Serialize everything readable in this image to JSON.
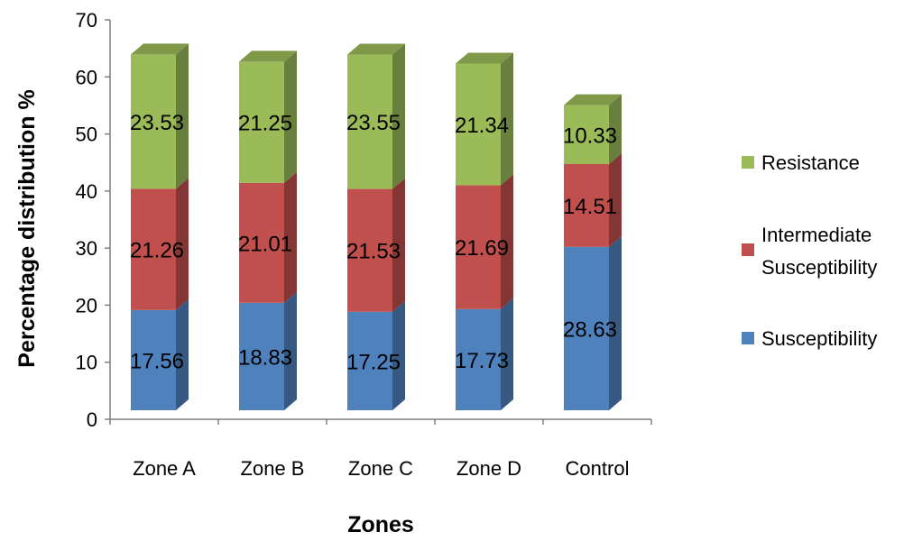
{
  "chart_data": {
    "type": "bar",
    "stacked": true,
    "three_d": true,
    "title": "",
    "xlabel": "Zones",
    "ylabel": "Percentage distribution %",
    "ylim": [
      0,
      70
    ],
    "yticks": [
      0,
      10,
      20,
      30,
      40,
      50,
      60,
      70
    ],
    "grid": false,
    "legend_position": "right",
    "categories": [
      "Zone A",
      "Zone B",
      "Zone C",
      "Zone D",
      "Control"
    ],
    "series": [
      {
        "name": "Susceptibility",
        "color": "#4f81bd",
        "values": [
          17.56,
          18.83,
          17.25,
          17.73,
          28.63
        ]
      },
      {
        "name": "Intermediate Susceptibility",
        "color": "#c0504d",
        "values": [
          21.26,
          21.01,
          21.53,
          21.69,
          14.51
        ]
      },
      {
        "name": "Resistance",
        "color": "#9bbb59",
        "values": [
          23.53,
          21.25,
          23.55,
          21.34,
          10.33
        ]
      }
    ],
    "legend_order": [
      "Resistance",
      "Intermediate Susceptibility",
      "Susceptibility"
    ],
    "data_labels": true
  }
}
